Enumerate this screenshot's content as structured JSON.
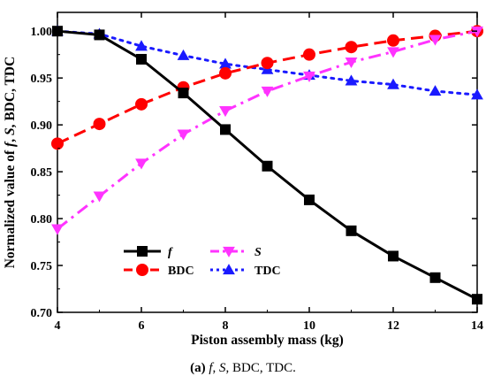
{
  "chart_data": {
    "type": "line",
    "xlabel": "Piston assembly mass (kg)",
    "ylabel_parts": [
      {
        "text": "Normalized value of ",
        "italic": false
      },
      {
        "text": "f",
        "italic": true
      },
      {
        "text": ", ",
        "italic": false
      },
      {
        "text": "S",
        "italic": true
      },
      {
        "text": ", BDC, TDC",
        "italic": false
      }
    ],
    "xlim": [
      4,
      14
    ],
    "ylim": [
      0.7,
      1.02
    ],
    "x_ticks": [
      4,
      6,
      8,
      10,
      12,
      14
    ],
    "y_ticks": [
      0.7,
      0.75,
      0.8,
      0.85,
      0.9,
      0.95,
      1.0
    ],
    "x_tick_labels": [
      "4",
      "6",
      "8",
      "10",
      "12",
      "14"
    ],
    "y_tick_labels": [
      "0.70",
      "0.75",
      "0.80",
      "0.85",
      "0.90",
      "0.95",
      "1.00"
    ],
    "grid": false,
    "legend_position": "bottom-left",
    "x": [
      4,
      5,
      6,
      7,
      8,
      9,
      10,
      11,
      12,
      13,
      14
    ],
    "series": [
      {
        "name": "f",
        "italic": true,
        "color": "#000000",
        "dash": "solid",
        "marker": "square",
        "values": [
          1.0,
          0.996,
          0.97,
          0.934,
          0.895,
          0.856,
          0.82,
          0.787,
          0.76,
          0.737,
          0.714
        ]
      },
      {
        "name": "S",
        "italic": true,
        "color": "#ff33ff",
        "dash": "dashdot",
        "marker": "triangle-down",
        "values": [
          0.789,
          0.824,
          0.859,
          0.89,
          0.915,
          0.936,
          0.952,
          0.967,
          0.978,
          0.991,
          1.0
        ]
      },
      {
        "name": "BDC",
        "italic": false,
        "color": "#ff0000",
        "dash": "dash",
        "marker": "circle",
        "values": [
          0.88,
          0.901,
          0.922,
          0.94,
          0.955,
          0.966,
          0.975,
          0.983,
          0.99,
          0.995,
          1.0
        ]
      },
      {
        "name": "TDC",
        "italic": false,
        "color": "#1a1aff",
        "dash": "dot",
        "marker": "triangle-up",
        "values": [
          1.0,
          0.997,
          0.984,
          0.974,
          0.965,
          0.959,
          0.953,
          0.947,
          0.943,
          0.936,
          0.932
        ]
      }
    ]
  },
  "caption": {
    "label": "(a)",
    "parts": [
      {
        "text": " ",
        "italic": false
      },
      {
        "text": "f",
        "italic": true
      },
      {
        "text": ", ",
        "italic": false
      },
      {
        "text": "S",
        "italic": true
      },
      {
        "text": ", BDC, TDC.",
        "italic": false
      }
    ]
  }
}
